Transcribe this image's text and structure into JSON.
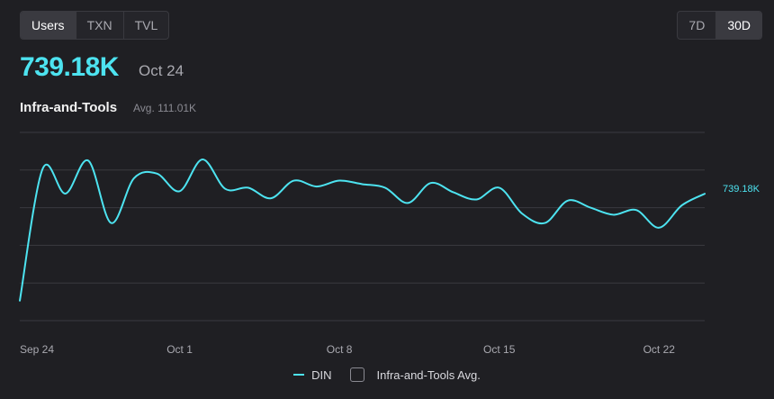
{
  "tabs": {
    "metrics": [
      "Users",
      "TXN",
      "TVL"
    ],
    "active_metric": "Users",
    "ranges": [
      "7D",
      "30D"
    ],
    "active_range": "30D"
  },
  "headline": {
    "value": "739.18K",
    "date": "Oct 24"
  },
  "subtitle": "Infra-and-Tools",
  "average": "Avg. 111.01K",
  "colors": {
    "accent": "#4de3f0",
    "background": "#1f1f23",
    "grid": "#3a3a40"
  },
  "legend": [
    {
      "label": "DIN",
      "marker": "line"
    },
    {
      "label": "Infra-and-Tools Avg.",
      "marker": "checkbox"
    }
  ],
  "chart_data": {
    "type": "line",
    "x": [
      "Sep 24",
      "Sep 25",
      "Sep 26",
      "Sep 27",
      "Sep 28",
      "Sep 29",
      "Sep 30",
      "Oct 1",
      "Oct 2",
      "Oct 3",
      "Oct 4",
      "Oct 5",
      "Oct 6",
      "Oct 7",
      "Oct 8",
      "Oct 9",
      "Oct 10",
      "Oct 11",
      "Oct 12",
      "Oct 13",
      "Oct 14",
      "Oct 15",
      "Oct 16",
      "Oct 17",
      "Oct 18",
      "Oct 19",
      "Oct 20",
      "Oct 21",
      "Oct 22",
      "Oct 23",
      "Oct 24"
    ],
    "series": [
      {
        "name": "DIN",
        "values": [
          285,
          845,
          740,
          880,
          615,
          805,
          825,
          750,
          885,
          760,
          765,
          720,
          795,
          770,
          795,
          780,
          765,
          700,
          785,
          745,
          715,
          765,
          655,
          615,
          710,
          680,
          650,
          670,
          595,
          690,
          739.18
        ],
        "end_label": "739.18K"
      }
    ],
    "x_ticks": [
      "Sep 24",
      "Oct 1",
      "Oct 8",
      "Oct 15",
      "Oct 22"
    ],
    "ylim": [
      200,
      1000
    ],
    "grid": true,
    "legend_position": "bottom"
  }
}
